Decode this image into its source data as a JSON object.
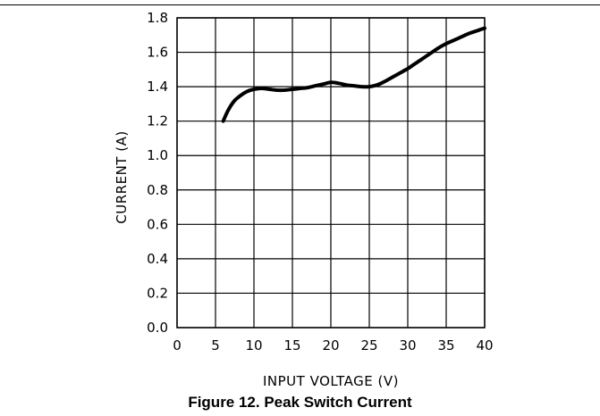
{
  "caption": "Figure 12. Peak Switch Current",
  "chart_data": {
    "type": "line",
    "title": "",
    "xlabel": "INPUT VOLTAGE (V)",
    "ylabel": "CURRENT (A)",
    "xlim": [
      0,
      40
    ],
    "ylim": [
      0,
      1.8
    ],
    "xticks": [
      0,
      5,
      10,
      15,
      20,
      25,
      30,
      35,
      40
    ],
    "yticks": [
      0.0,
      0.2,
      0.4,
      0.6,
      0.8,
      1.0,
      1.2,
      1.4,
      1.6,
      1.8
    ],
    "xtick_labels": [
      "0",
      "5",
      "10",
      "15",
      "20",
      "25",
      "30",
      "35",
      "40"
    ],
    "ytick_labels": [
      "0.0",
      "0.2",
      "0.4",
      "0.6",
      "0.8",
      "1.0",
      "1.2",
      "1.4",
      "1.6",
      "1.8"
    ],
    "grid": true,
    "legend": "none",
    "series": [
      {
        "x": [
          6,
          6.5,
          7,
          7.5,
          8,
          9,
          10,
          11,
          12,
          13,
          14,
          15,
          16,
          17,
          18,
          19,
          20,
          21,
          22,
          23,
          24,
          25,
          26,
          27,
          28,
          29,
          30,
          31,
          32,
          33,
          34,
          35,
          36,
          37,
          38,
          39,
          40
        ],
        "y": [
          1.2,
          1.25,
          1.29,
          1.32,
          1.34,
          1.37,
          1.385,
          1.39,
          1.385,
          1.38,
          1.38,
          1.385,
          1.39,
          1.395,
          1.405,
          1.415,
          1.425,
          1.42,
          1.41,
          1.405,
          1.4,
          1.4,
          1.41,
          1.43,
          1.455,
          1.48,
          1.505,
          1.535,
          1.565,
          1.595,
          1.625,
          1.65,
          1.67,
          1.69,
          1.71,
          1.725,
          1.74
        ]
      }
    ]
  }
}
